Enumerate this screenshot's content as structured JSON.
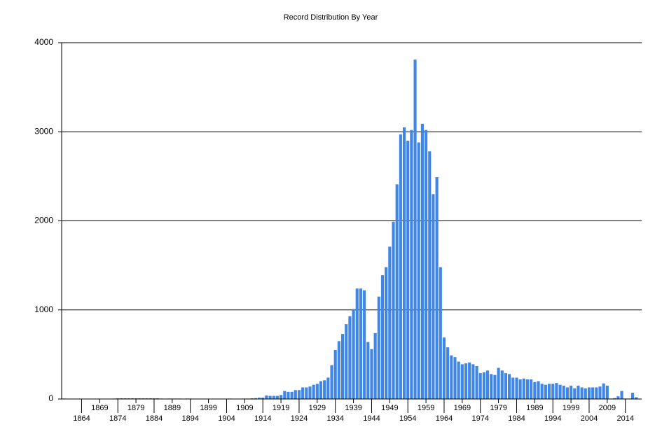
{
  "chart_data": {
    "type": "bar",
    "title": "Record Distribution By Year",
    "color": "#3f86e6",
    "grid": true,
    "x": [
      1859,
      1860,
      1861,
      1862,
      1863,
      1864,
      1865,
      1866,
      1867,
      1868,
      1869,
      1870,
      1871,
      1872,
      1873,
      1874,
      1875,
      1876,
      1877,
      1878,
      1879,
      1880,
      1881,
      1882,
      1883,
      1884,
      1885,
      1886,
      1887,
      1888,
      1889,
      1890,
      1891,
      1892,
      1893,
      1894,
      1895,
      1896,
      1897,
      1898,
      1899,
      1900,
      1901,
      1902,
      1903,
      1904,
      1905,
      1906,
      1907,
      1908,
      1909,
      1910,
      1911,
      1912,
      1913,
      1914,
      1915,
      1916,
      1917,
      1918,
      1919,
      1920,
      1921,
      1922,
      1923,
      1924,
      1925,
      1926,
      1927,
      1928,
      1929,
      1930,
      1931,
      1932,
      1933,
      1934,
      1935,
      1936,
      1937,
      1938,
      1939,
      1940,
      1941,
      1942,
      1943,
      1944,
      1945,
      1946,
      1947,
      1948,
      1949,
      1950,
      1951,
      1952,
      1953,
      1954,
      1955,
      1956,
      1957,
      1958,
      1959,
      1960,
      1961,
      1962,
      1963,
      1964,
      1965,
      1966,
      1967,
      1968,
      1969,
      1970,
      1971,
      1972,
      1973,
      1974,
      1975,
      1976,
      1977,
      1978,
      1979,
      1980,
      1981,
      1982,
      1983,
      1984,
      1985,
      1986,
      1987,
      1988,
      1989,
      1990,
      1991,
      1992,
      1993,
      1994,
      1995,
      1996,
      1997,
      1998,
      1999,
      2000,
      2001,
      2002,
      2003,
      2004,
      2005,
      2006,
      2007,
      2008,
      2009,
      2010,
      2011,
      2012,
      2013,
      2014,
      2015,
      2016,
      2017
    ],
    "values": [
      5,
      0,
      0,
      0,
      0,
      0,
      0,
      0,
      0,
      0,
      0,
      0,
      0,
      0,
      5,
      8,
      8,
      8,
      8,
      8,
      8,
      8,
      8,
      8,
      8,
      8,
      8,
      5,
      0,
      5,
      5,
      5,
      5,
      0,
      5,
      5,
      0,
      0,
      0,
      0,
      0,
      0,
      0,
      0,
      0,
      0,
      5,
      0,
      0,
      0,
      5,
      5,
      8,
      10,
      15,
      15,
      40,
      35,
      35,
      35,
      45,
      90,
      80,
      80,
      100,
      100,
      130,
      130,
      140,
      160,
      170,
      200,
      210,
      240,
      380,
      550,
      650,
      730,
      840,
      930,
      1010,
      1240,
      1240,
      1220,
      640,
      560,
      740,
      1150,
      1390,
      1480,
      1710,
      1990,
      2410,
      2970,
      3050,
      2900,
      3020,
      3810,
      2880,
      3090,
      3020,
      2780,
      2300,
      2490,
      1480,
      690,
      580,
      490,
      470,
      420,
      390,
      400,
      410,
      390,
      370,
      290,
      300,
      320,
      280,
      270,
      350,
      320,
      290,
      280,
      240,
      240,
      220,
      230,
      220,
      220,
      190,
      200,
      170,
      160,
      170,
      170,
      180,
      160,
      150,
      130,
      150,
      120,
      150,
      130,
      120,
      130,
      130,
      130,
      140,
      175,
      150,
      5,
      10,
      30,
      90,
      5,
      5,
      70,
      20
    ],
    "xlim": [
      1858.5,
      2018.5
    ],
    "xticks": [
      1864,
      1869,
      1874,
      1879,
      1884,
      1889,
      1894,
      1899,
      1904,
      1909,
      1914,
      1919,
      1924,
      1929,
      1934,
      1939,
      1944,
      1949,
      1954,
      1959,
      1964,
      1969,
      1974,
      1979,
      1984,
      1989,
      1994,
      1999,
      2004,
      2009,
      2014
    ],
    "ylim": [
      0,
      4000
    ],
    "yticks": [
      0,
      1000,
      2000,
      3000,
      4000
    ]
  }
}
